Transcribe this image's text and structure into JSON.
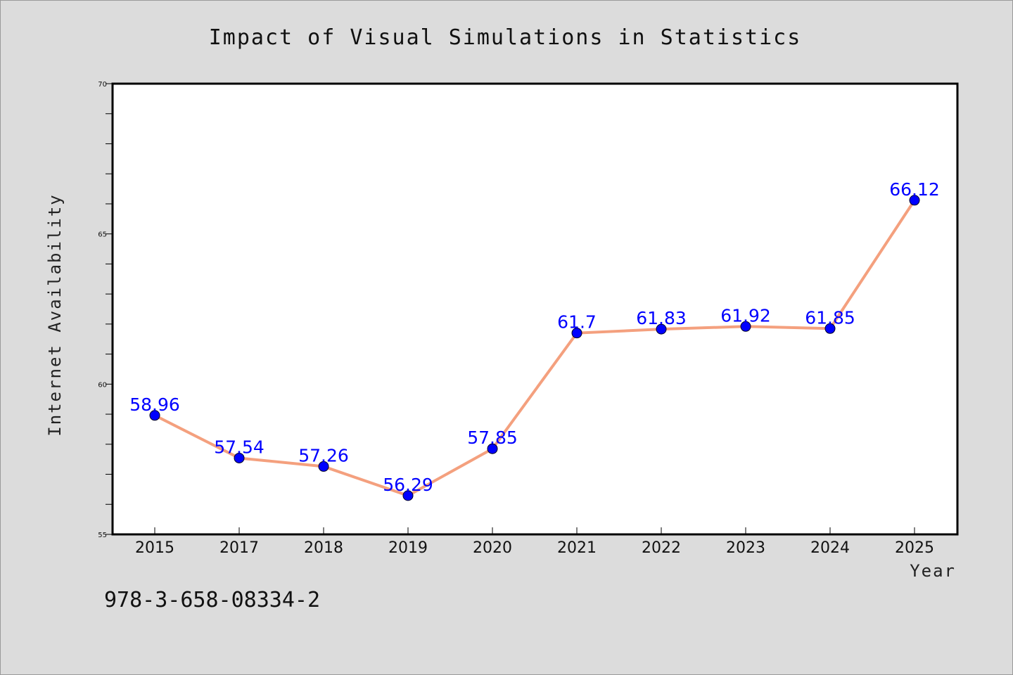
{
  "chart_data": {
    "type": "line",
    "title": "Impact of Visual Simulations in Statistics",
    "xlabel": "Year",
    "ylabel": "Internet Availability",
    "categories": [
      "2015",
      "2017",
      "2018",
      "2019",
      "2020",
      "2021",
      "2022",
      "2023",
      "2024",
      "2025"
    ],
    "series": [
      {
        "values": [
          58.96,
          57.54,
          57.26,
          56.29,
          57.85,
          61.7,
          61.83,
          61.92,
          61.85,
          66.12
        ],
        "labels": [
          "58.96",
          "57.54",
          "57.26",
          "56.29",
          "57.85",
          "61.7",
          "61.83",
          "61.92",
          "61.85",
          "66.12"
        ],
        "line_color": "#f4a07e",
        "marker_color": "#0000ff"
      }
    ],
    "ylim": [
      55,
      70
    ],
    "yticks": [
      55,
      60,
      65,
      70
    ],
    "ytick_labels": [
      "55",
      "60",
      "65",
      "70"
    ],
    "grid": false,
    "legend": "none"
  },
  "footnote": "978-3-658-08334-2"
}
